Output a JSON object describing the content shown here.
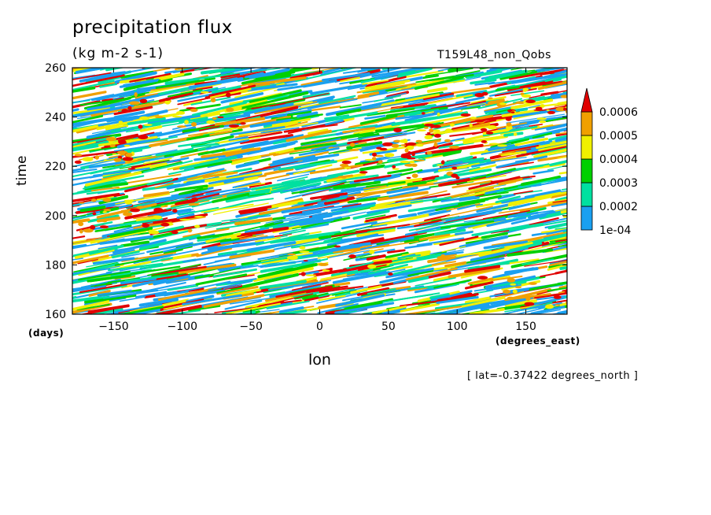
{
  "header": {
    "title": "precipitation flux",
    "units": "(kg m-2 s-1)",
    "run": "T159L48_non_Qobs",
    "note": "[ lat=-0.37422 degrees_north ]"
  },
  "colors": {
    "level1": "#1aa0f0",
    "level2": "#00e0a0",
    "level3": "#00d000",
    "level4": "#f0f000",
    "level5": "#f0a000",
    "level6": "#e00000",
    "background": "#ffffff"
  },
  "chart_data": {
    "type": "heatmap",
    "title": "precipitation flux",
    "subtitle": "(kg m-2 s-1)",
    "xlabel": "lon",
    "ylabel": "time",
    "x_unit": "(degrees_east)",
    "y_unit": "(days)",
    "xlim": [
      -180,
      180
    ],
    "ylim": [
      160,
      260
    ],
    "xticks": [
      -150,
      -100,
      -50,
      0,
      50,
      100,
      150
    ],
    "yticks": [
      160,
      180,
      200,
      220,
      240,
      260
    ],
    "colorbar": {
      "labels": [
        "1e-04",
        "0.0002",
        "0.0003",
        "0.0004",
        "0.0005",
        "0.0006"
      ],
      "levels": [
        0.0001,
        0.0002,
        0.0003,
        0.0004,
        0.0005,
        0.0006
      ],
      "colors": [
        "#1aa0f0",
        "#00e0a0",
        "#00d000",
        "#f0f000",
        "#f0a000",
        "#e00000"
      ],
      "extend": "max"
    },
    "pattern": "eastward-propagating precipitation streaks; mostly 1e-04 to 0.0003 with scattered maxima above 0.0006 near lon -130, 20, 150 and days 181, 225, 245"
  }
}
